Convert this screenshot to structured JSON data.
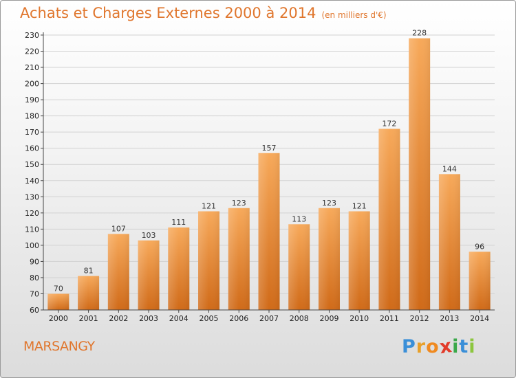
{
  "title": "Achats et Charges Externes 2000 à 2014",
  "unit": "(en milliers d'€)",
  "place": "MARSANGY",
  "logo": {
    "letters": [
      "P",
      "r",
      "o",
      "x",
      "i",
      "t",
      "i"
    ],
    "colors": [
      "#3a8fd8",
      "#e8a02a",
      "#f08a20",
      "#e23b2a",
      "#3aa84a",
      "#3a8fd8",
      "#8cc63e"
    ]
  },
  "colors": {
    "accent": "#e0762d",
    "bar_top": "#f7a95a",
    "bar_bottom": "#d06a18"
  },
  "chart_data": {
    "type": "bar",
    "categories": [
      "2000",
      "2001",
      "2002",
      "2003",
      "2004",
      "2005",
      "2006",
      "2007",
      "2008",
      "2009",
      "2010",
      "2011",
      "2012",
      "2013",
      "2014"
    ],
    "values": [
      70,
      81,
      107,
      103,
      111,
      121,
      123,
      157,
      113,
      123,
      121,
      172,
      228,
      144,
      96
    ],
    "ylim": [
      60,
      230
    ],
    "yticks": [
      60,
      70,
      80,
      90,
      100,
      110,
      120,
      130,
      140,
      150,
      160,
      170,
      180,
      190,
      200,
      210,
      220,
      230
    ],
    "grid": true
  }
}
